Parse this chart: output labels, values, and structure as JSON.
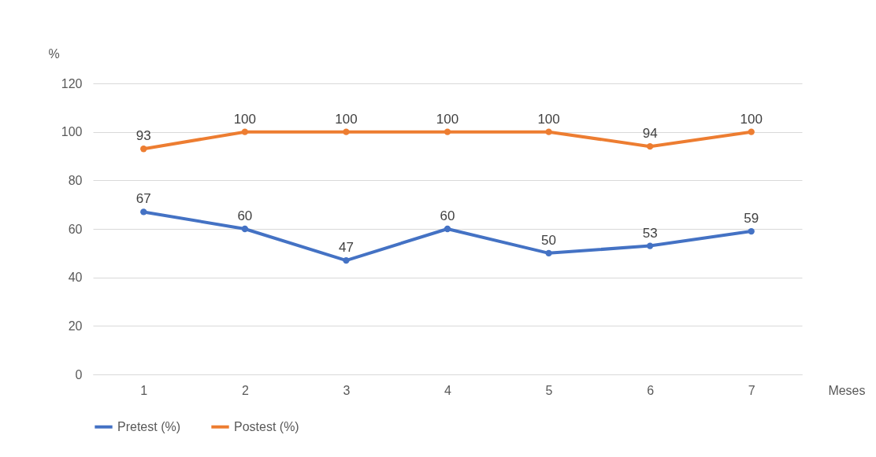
{
  "chart_data": {
    "type": "line",
    "xlabel": "Meses",
    "ylabel": "%",
    "categories": [
      "1",
      "2",
      "3",
      "4",
      "5",
      "6",
      "7"
    ],
    "series": [
      {
        "name": "Pretest (%)",
        "color": "#4472c4",
        "values": [
          67,
          60,
          47,
          60,
          50,
          53,
          59
        ]
      },
      {
        "name": "Postest (%)",
        "color": "#ed7d31",
        "values": [
          93,
          100,
          100,
          100,
          100,
          94,
          100
        ]
      }
    ],
    "ylim": [
      0,
      120
    ],
    "yticks": [
      0,
      20,
      40,
      60,
      80,
      100,
      120
    ],
    "grid": "y",
    "legend": "bottom",
    "marker": "circle",
    "line_style": "solid",
    "data_labels": true
  }
}
